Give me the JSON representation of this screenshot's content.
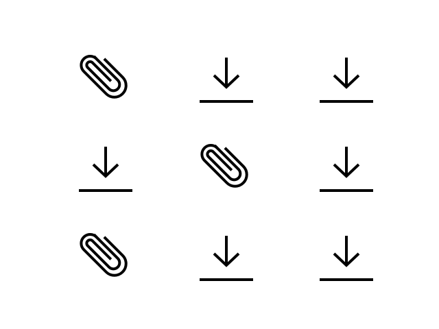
{
  "colors": {
    "background": "#ffffff",
    "icon": "#000000"
  },
  "grid": {
    "rows": 3,
    "columns": 3,
    "cells": [
      {
        "icon": "paperclip-icon"
      },
      {
        "icon": "download-icon"
      },
      {
        "icon": "download-icon"
      },
      {
        "icon": "download-icon"
      },
      {
        "icon": "paperclip-icon"
      },
      {
        "icon": "download-icon"
      },
      {
        "icon": "paperclip-icon"
      },
      {
        "icon": "download-icon"
      },
      {
        "icon": "download-icon"
      }
    ]
  }
}
